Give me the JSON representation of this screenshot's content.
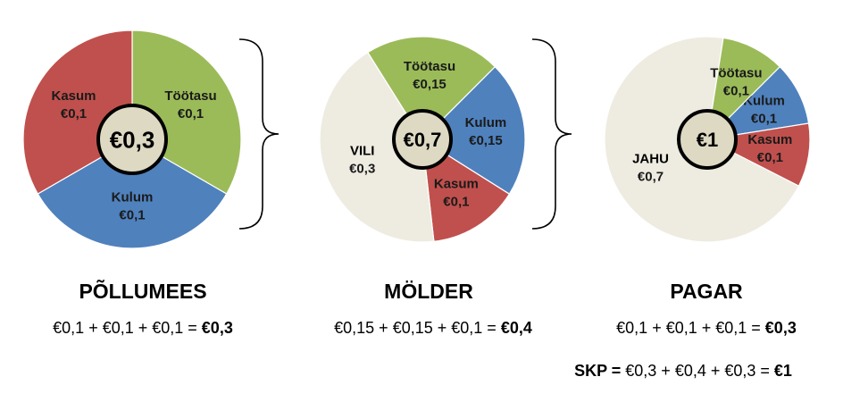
{
  "chart_data": [
    {
      "type": "pie",
      "center_label": "€0,3",
      "slices": [
        {
          "name": "Töötasu",
          "label": "€0,1",
          "value": 0.1,
          "color": "#9bbb59"
        },
        {
          "name": "Kulum",
          "label": "€0,1",
          "value": 0.1,
          "color": "#4f81bd"
        },
        {
          "name": "Kasum",
          "label": "€0,1",
          "value": 0.1,
          "color": "#c0504d"
        }
      ],
      "title": "PÕLLUMEES",
      "formula": {
        "terms": "€0,1 + €0,1 + €0,1 = ",
        "result": "€0,3"
      }
    },
    {
      "type": "pie",
      "center_label": "€0,7",
      "slices": [
        {
          "name": "Töötasu",
          "label": "€0,15",
          "value": 0.15,
          "color": "#9bbb59"
        },
        {
          "name": "Kulum",
          "label": "€0,15",
          "value": 0.15,
          "color": "#4f81bd"
        },
        {
          "name": "Kasum",
          "label": "€0,1",
          "value": 0.1,
          "color": "#c0504d"
        },
        {
          "name": "VILI",
          "label": "€0,3",
          "value": 0.3,
          "color": "#eeece1"
        }
      ],
      "title": "MÖLDER",
      "formula": {
        "terms": "€0,15 + €0,15 + €0,1 = ",
        "result": "€0,4"
      }
    },
    {
      "type": "pie",
      "center_label": "€1",
      "slices": [
        {
          "name": "Töötasu",
          "label": "€0,1",
          "value": 0.1,
          "color": "#9bbb59"
        },
        {
          "name": "Kulum",
          "label": "€0,1",
          "value": 0.1,
          "color": "#4f81bd"
        },
        {
          "name": "Kasum",
          "label": "€0,1",
          "value": 0.1,
          "color": "#c0504d"
        },
        {
          "name": "JAHU",
          "label": "€0,7",
          "value": 0.7,
          "color": "#eeece1"
        }
      ],
      "title": "PAGAR",
      "formula": {
        "terms": "€0,1 + €0,1 + €0,1 = ",
        "result": "€0,3"
      }
    }
  ],
  "gdp": {
    "label": "SKP = ",
    "terms": "€0,3 + €0,4 + €0,3 = ",
    "result": "€1"
  }
}
